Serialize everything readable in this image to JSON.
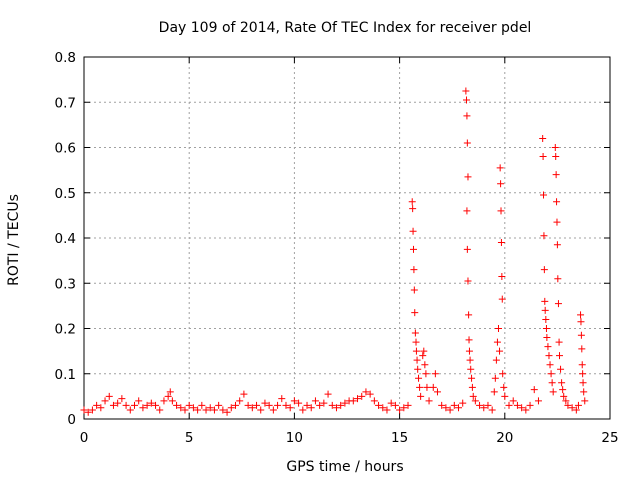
{
  "chart_data": {
    "type": "scatter",
    "title": "Day 109 of 2014, Rate Of TEC Index for receiver pdel",
    "xlabel": "GPS time / hours",
    "ylabel": "ROTI / TECUs",
    "xlim": [
      0,
      25
    ],
    "ylim": [
      0,
      0.8
    ],
    "xticks": [
      0,
      5,
      10,
      15,
      20,
      25
    ],
    "yticks": [
      0,
      0.1,
      0.2,
      0.3,
      0.4,
      0.5,
      0.6,
      0.7,
      0.8
    ],
    "xtick_labels": [
      "0",
      "5",
      "10",
      "15",
      "20",
      "25"
    ],
    "ytick_labels": [
      "0",
      "0.1",
      "0.2",
      "0.3",
      "0.4",
      "0.5",
      "0.6",
      "0.7",
      "0.8"
    ],
    "grid": true,
    "marker": "+",
    "color": "#ff0000",
    "series": [
      {
        "name": "ROTI",
        "points": [
          [
            0.0,
            0.02
          ],
          [
            0.2,
            0.015
          ],
          [
            0.4,
            0.02
          ],
          [
            0.6,
            0.03
          ],
          [
            0.8,
            0.025
          ],
          [
            1.0,
            0.04
          ],
          [
            1.2,
            0.05
          ],
          [
            1.4,
            0.03
          ],
          [
            1.6,
            0.035
          ],
          [
            1.8,
            0.045
          ],
          [
            2.0,
            0.03
          ],
          [
            2.2,
            0.02
          ],
          [
            2.4,
            0.03
          ],
          [
            2.6,
            0.04
          ],
          [
            2.8,
            0.025
          ],
          [
            3.0,
            0.03
          ],
          [
            3.2,
            0.035
          ],
          [
            3.4,
            0.03
          ],
          [
            3.6,
            0.02
          ],
          [
            3.8,
            0.04
          ],
          [
            4.0,
            0.05
          ],
          [
            4.1,
            0.06
          ],
          [
            4.2,
            0.04
          ],
          [
            4.4,
            0.03
          ],
          [
            4.6,
            0.025
          ],
          [
            4.8,
            0.02
          ],
          [
            5.0,
            0.03
          ],
          [
            5.2,
            0.025
          ],
          [
            5.4,
            0.02
          ],
          [
            5.6,
            0.03
          ],
          [
            5.8,
            0.02
          ],
          [
            6.0,
            0.025
          ],
          [
            6.2,
            0.02
          ],
          [
            6.4,
            0.03
          ],
          [
            6.6,
            0.02
          ],
          [
            6.8,
            0.015
          ],
          [
            7.0,
            0.025
          ],
          [
            7.2,
            0.03
          ],
          [
            7.4,
            0.04
          ],
          [
            7.6,
            0.055
          ],
          [
            7.8,
            0.03
          ],
          [
            8.0,
            0.025
          ],
          [
            8.2,
            0.03
          ],
          [
            8.4,
            0.02
          ],
          [
            8.6,
            0.035
          ],
          [
            8.8,
            0.03
          ],
          [
            9.0,
            0.02
          ],
          [
            9.2,
            0.03
          ],
          [
            9.4,
            0.045
          ],
          [
            9.6,
            0.03
          ],
          [
            9.8,
            0.025
          ],
          [
            10.0,
            0.04
          ],
          [
            10.2,
            0.035
          ],
          [
            10.4,
            0.02
          ],
          [
            10.6,
            0.03
          ],
          [
            10.8,
            0.025
          ],
          [
            11.0,
            0.04
          ],
          [
            11.2,
            0.03
          ],
          [
            11.4,
            0.035
          ],
          [
            11.6,
            0.055
          ],
          [
            11.8,
            0.03
          ],
          [
            12.0,
            0.025
          ],
          [
            12.2,
            0.03
          ],
          [
            12.4,
            0.035
          ],
          [
            12.6,
            0.04
          ],
          [
            12.8,
            0.04
          ],
          [
            13.0,
            0.045
          ],
          [
            13.2,
            0.05
          ],
          [
            13.4,
            0.06
          ],
          [
            13.6,
            0.055
          ],
          [
            13.8,
            0.04
          ],
          [
            14.0,
            0.03
          ],
          [
            14.2,
            0.025
          ],
          [
            14.4,
            0.02
          ],
          [
            14.6,
            0.035
          ],
          [
            14.8,
            0.03
          ],
          [
            15.0,
            0.02
          ],
          [
            15.2,
            0.025
          ],
          [
            15.4,
            0.03
          ],
          [
            15.6,
            0.48
          ],
          [
            15.62,
            0.465
          ],
          [
            15.64,
            0.415
          ],
          [
            15.66,
            0.375
          ],
          [
            15.68,
            0.33
          ],
          [
            15.7,
            0.285
          ],
          [
            15.72,
            0.235
          ],
          [
            15.75,
            0.19
          ],
          [
            15.78,
            0.17
          ],
          [
            15.8,
            0.15
          ],
          [
            15.83,
            0.13
          ],
          [
            15.86,
            0.11
          ],
          [
            15.9,
            0.09
          ],
          [
            15.95,
            0.07
          ],
          [
            16.0,
            0.05
          ],
          [
            16.1,
            0.14
          ],
          [
            16.15,
            0.15
          ],
          [
            16.2,
            0.12
          ],
          [
            16.25,
            0.1
          ],
          [
            16.3,
            0.07
          ],
          [
            16.4,
            0.04
          ],
          [
            16.6,
            0.07
          ],
          [
            16.7,
            0.1
          ],
          [
            16.8,
            0.06
          ],
          [
            17.0,
            0.03
          ],
          [
            17.2,
            0.025
          ],
          [
            17.4,
            0.02
          ],
          [
            17.6,
            0.03
          ],
          [
            17.8,
            0.025
          ],
          [
            18.0,
            0.035
          ],
          [
            18.15,
            0.725
          ],
          [
            18.18,
            0.705
          ],
          [
            18.2,
            0.67
          ],
          [
            18.22,
            0.61
          ],
          [
            18.25,
            0.535
          ],
          [
            18.2,
            0.46
          ],
          [
            18.22,
            0.375
          ],
          [
            18.25,
            0.305
          ],
          [
            18.28,
            0.23
          ],
          [
            18.3,
            0.175
          ],
          [
            18.32,
            0.15
          ],
          [
            18.35,
            0.13
          ],
          [
            18.38,
            0.11
          ],
          [
            18.42,
            0.09
          ],
          [
            18.46,
            0.07
          ],
          [
            18.5,
            0.05
          ],
          [
            18.6,
            0.04
          ],
          [
            18.8,
            0.03
          ],
          [
            19.0,
            0.025
          ],
          [
            19.2,
            0.03
          ],
          [
            19.4,
            0.02
          ],
          [
            19.5,
            0.06
          ],
          [
            19.55,
            0.09
          ],
          [
            19.6,
            0.13
          ],
          [
            19.65,
            0.17
          ],
          [
            19.7,
            0.2
          ],
          [
            19.75,
            0.15
          ],
          [
            19.78,
            0.555
          ],
          [
            19.8,
            0.52
          ],
          [
            19.82,
            0.46
          ],
          [
            19.84,
            0.39
          ],
          [
            19.86,
            0.315
          ],
          [
            19.88,
            0.265
          ],
          [
            19.9,
            0.1
          ],
          [
            19.95,
            0.07
          ],
          [
            20.0,
            0.05
          ],
          [
            20.2,
            0.03
          ],
          [
            20.4,
            0.04
          ],
          [
            20.6,
            0.03
          ],
          [
            20.8,
            0.025
          ],
          [
            21.0,
            0.02
          ],
          [
            21.2,
            0.03
          ],
          [
            21.4,
            0.065
          ],
          [
            21.6,
            0.04
          ],
          [
            21.8,
            0.62
          ],
          [
            21.82,
            0.58
          ],
          [
            21.84,
            0.495
          ],
          [
            21.86,
            0.405
          ],
          [
            21.88,
            0.33
          ],
          [
            21.9,
            0.26
          ],
          [
            21.92,
            0.24
          ],
          [
            21.95,
            0.22
          ],
          [
            21.98,
            0.2
          ],
          [
            22.0,
            0.18
          ],
          [
            22.05,
            0.16
          ],
          [
            22.1,
            0.14
          ],
          [
            22.15,
            0.12
          ],
          [
            22.2,
            0.1
          ],
          [
            22.25,
            0.08
          ],
          [
            22.3,
            0.06
          ],
          [
            22.4,
            0.6
          ],
          [
            22.42,
            0.58
          ],
          [
            22.44,
            0.54
          ],
          [
            22.46,
            0.48
          ],
          [
            22.48,
            0.435
          ],
          [
            22.5,
            0.385
          ],
          [
            22.52,
            0.31
          ],
          [
            22.55,
            0.255
          ],
          [
            22.58,
            0.17
          ],
          [
            22.6,
            0.14
          ],
          [
            22.65,
            0.11
          ],
          [
            22.7,
            0.08
          ],
          [
            22.75,
            0.065
          ],
          [
            22.8,
            0.05
          ],
          [
            22.9,
            0.04
          ],
          [
            23.0,
            0.03
          ],
          [
            23.2,
            0.025
          ],
          [
            23.4,
            0.02
          ],
          [
            23.5,
            0.03
          ],
          [
            23.6,
            0.23
          ],
          [
            23.62,
            0.215
          ],
          [
            23.64,
            0.185
          ],
          [
            23.66,
            0.155
          ],
          [
            23.68,
            0.12
          ],
          [
            23.7,
            0.1
          ],
          [
            23.72,
            0.08
          ],
          [
            23.75,
            0.06
          ],
          [
            23.8,
            0.04
          ]
        ]
      }
    ]
  }
}
